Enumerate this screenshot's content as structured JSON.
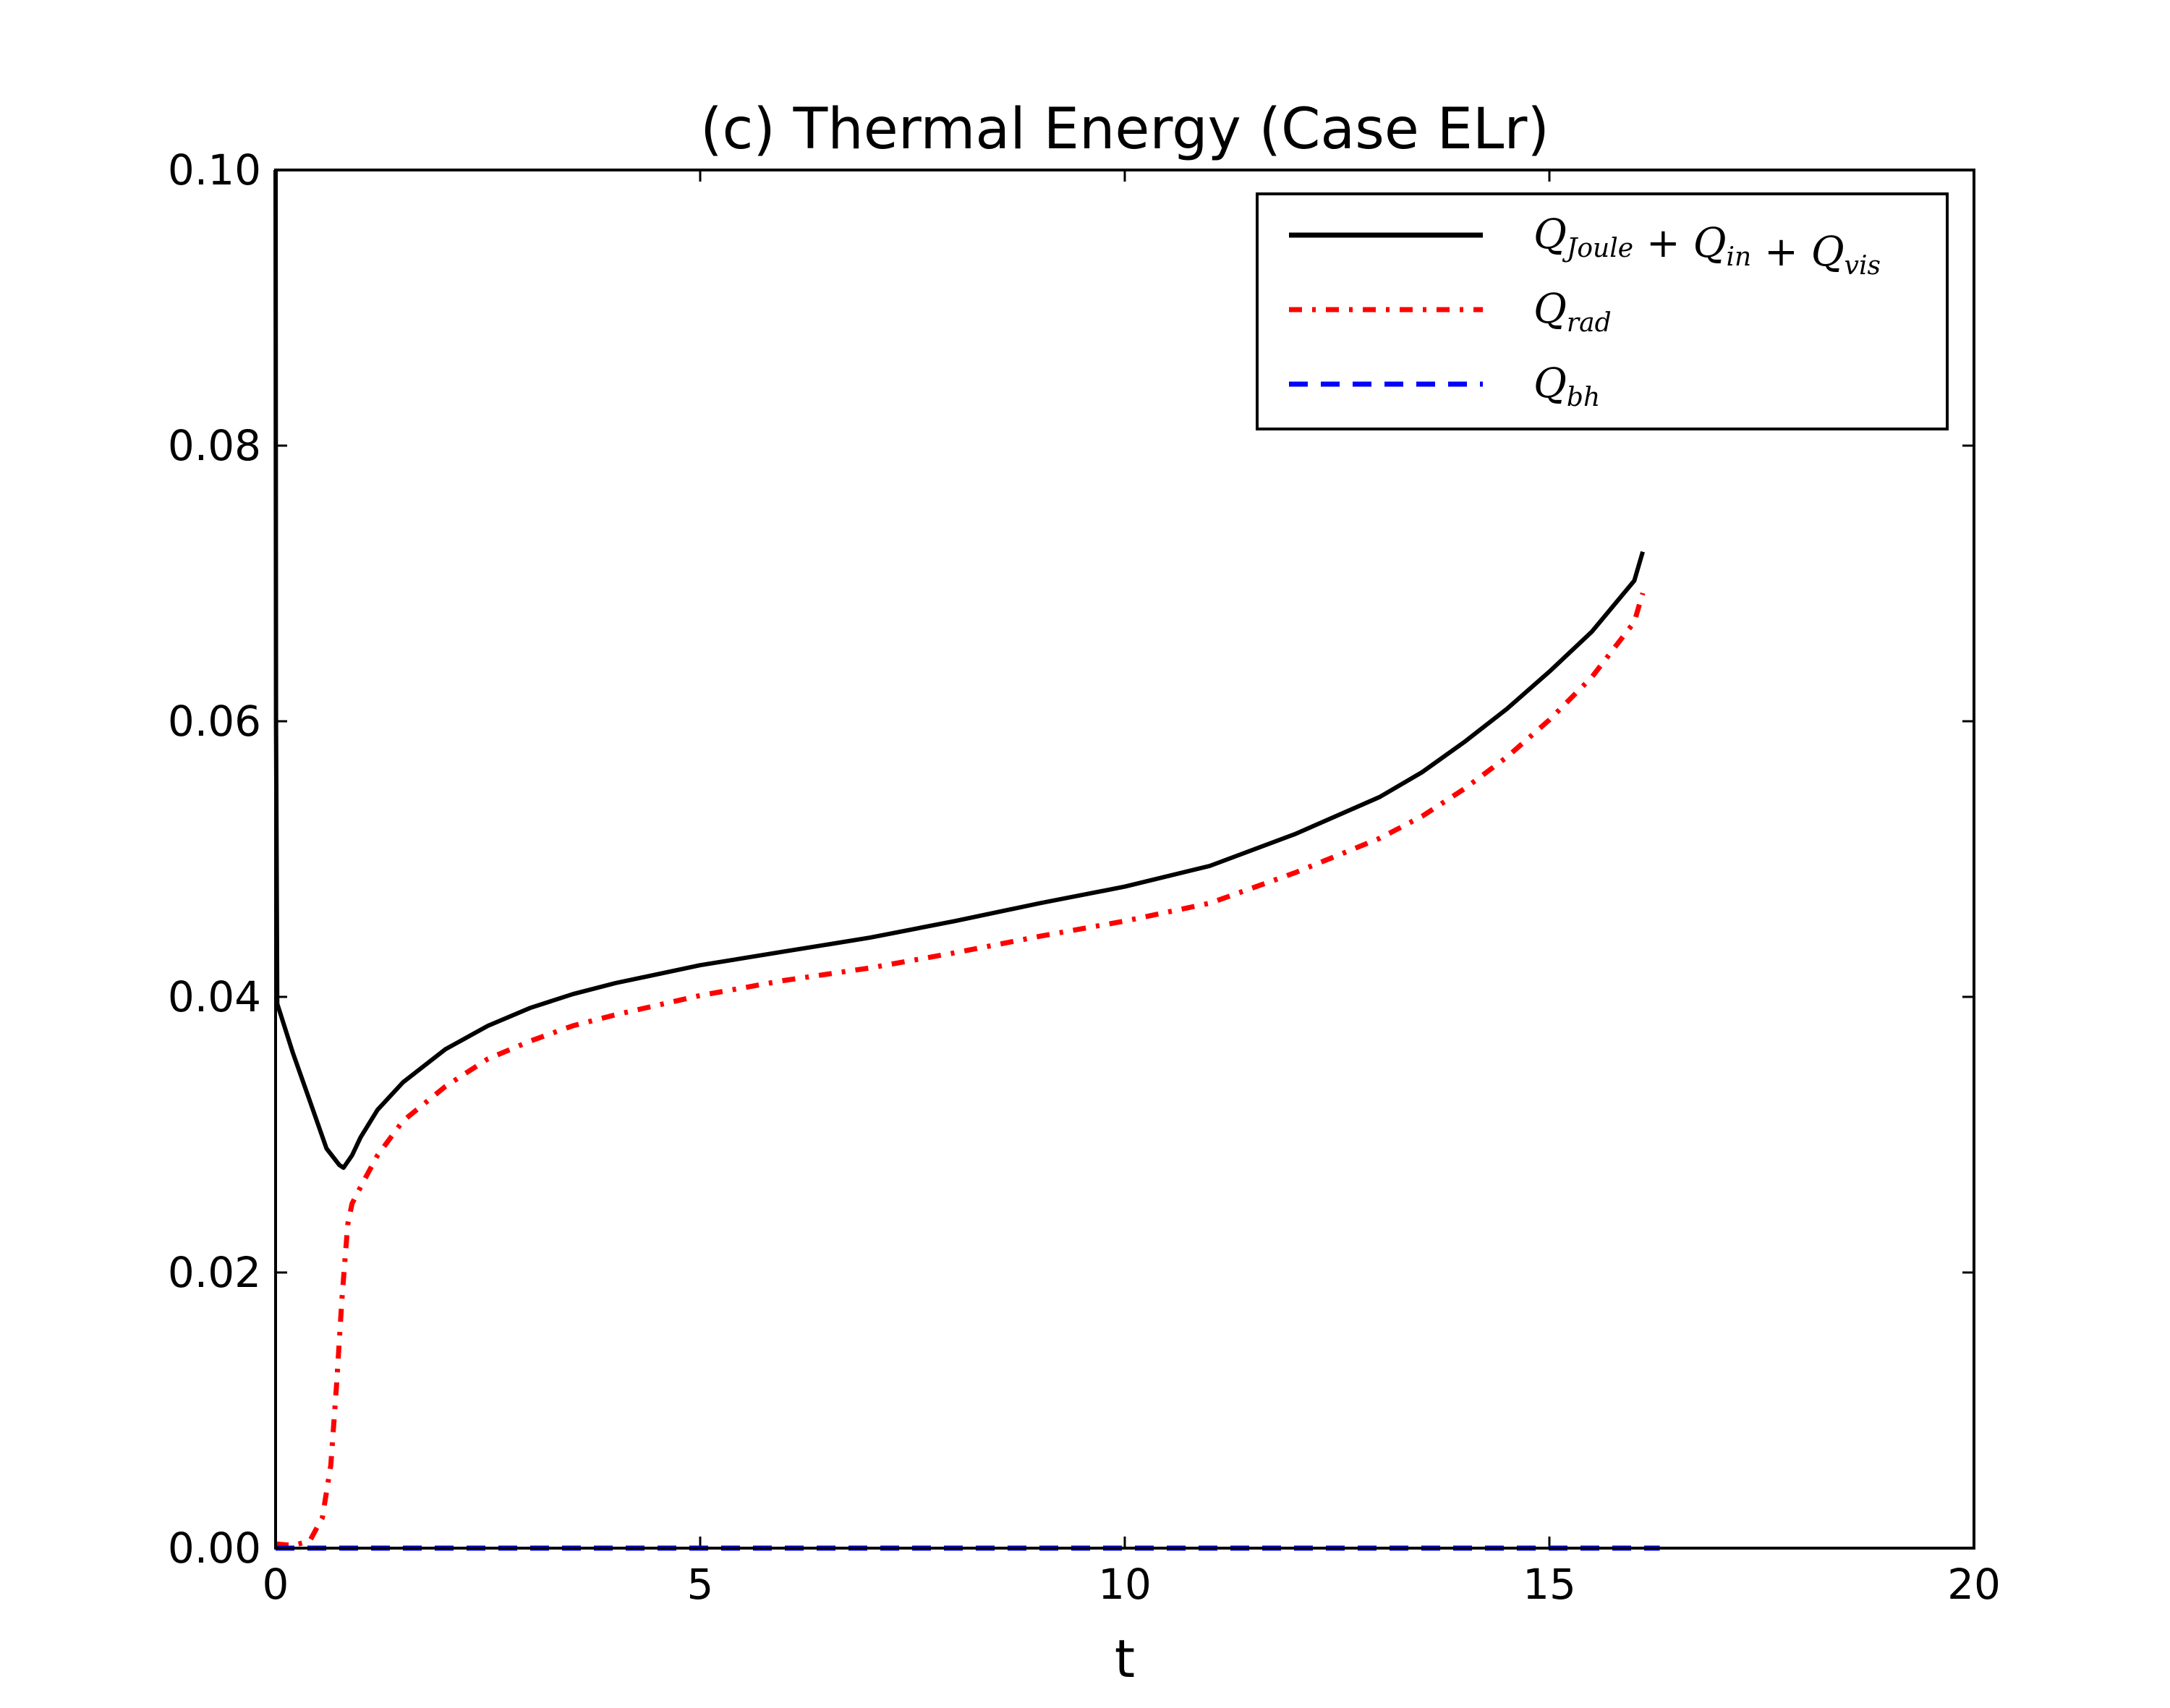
{
  "chart_data": {
    "type": "line",
    "title": "(c) Thermal Energy (Case ELr)",
    "xlabel": "t",
    "ylabel": "",
    "xlim": [
      0,
      20
    ],
    "ylim": [
      0,
      0.1
    ],
    "xticks": [
      "0",
      "5",
      "10",
      "15",
      "20"
    ],
    "yticks": [
      "0.00",
      "0.02",
      "0.04",
      "0.06",
      "0.08",
      "0.10"
    ],
    "grid": false,
    "legend_position": "top-right",
    "series": [
      {
        "name": "Q_{Joule} + Q_{in} + Q_{vis}",
        "legend": {
          "base": "Q",
          "sub": "Joule",
          "rest": [
            {
              "op": " + ",
              "base": "Q",
              "sub": "in"
            },
            {
              "op": " + ",
              "base": "Q",
              "sub": "vis"
            }
          ]
        },
        "color": "#000000",
        "style": "solid",
        "x": [
          0.0,
          0.005,
          0.02,
          0.2,
          0.4,
          0.6,
          0.75,
          0.8,
          0.9,
          1.0,
          1.2,
          1.5,
          2.0,
          2.5,
          3.0,
          3.5,
          4.0,
          5.0,
          6.0,
          7.0,
          8.0,
          9.0,
          10.0,
          11.0,
          12.0,
          13.0,
          13.5,
          14.0,
          14.5,
          15.0,
          15.5,
          16.0,
          16.1
        ],
        "y": [
          0.1,
          0.06,
          0.0395,
          0.036,
          0.0325,
          0.029,
          0.0278,
          0.0276,
          0.0285,
          0.0298,
          0.0318,
          0.0338,
          0.0362,
          0.0379,
          0.0392,
          0.0402,
          0.041,
          0.0423,
          0.0433,
          0.0443,
          0.0455,
          0.0468,
          0.048,
          0.0495,
          0.0518,
          0.0545,
          0.0563,
          0.0585,
          0.0609,
          0.0636,
          0.0665,
          0.0702,
          0.0723
        ]
      },
      {
        "name": "Q_{rad}",
        "legend": {
          "base": "Q",
          "sub": "rad",
          "rest": []
        },
        "color": "#ff0000",
        "style": "dashdot",
        "x": [
          0.0,
          0.2,
          0.4,
          0.55,
          0.65,
          0.72,
          0.78,
          0.85,
          0.9,
          1.0,
          1.2,
          1.5,
          2.0,
          2.5,
          3.0,
          3.5,
          4.0,
          5.0,
          6.0,
          7.0,
          8.0,
          9.0,
          10.0,
          11.0,
          12.0,
          13.0,
          13.5,
          14.0,
          14.5,
          15.0,
          15.5,
          16.0,
          16.1
        ],
        "y": [
          0.0003,
          0.0002,
          0.0005,
          0.0022,
          0.006,
          0.012,
          0.018,
          0.0235,
          0.025,
          0.0262,
          0.0285,
          0.031,
          0.0335,
          0.0355,
          0.0368,
          0.0379,
          0.0387,
          0.0401,
          0.0412,
          0.0421,
          0.0432,
          0.0444,
          0.0455,
          0.0468,
          0.049,
          0.0515,
          0.0531,
          0.0551,
          0.0574,
          0.0601,
          0.0632,
          0.0672,
          0.0693
        ]
      },
      {
        "name": "Q_{bh}",
        "legend": {
          "base": "Q",
          "sub": "bh",
          "rest": []
        },
        "color": "#0000ff",
        "style": "dashed",
        "x": [
          0.0,
          5.0,
          10.0,
          16.3
        ],
        "y": [
          0.0,
          0.0,
          0.0,
          0.0
        ]
      }
    ]
  }
}
